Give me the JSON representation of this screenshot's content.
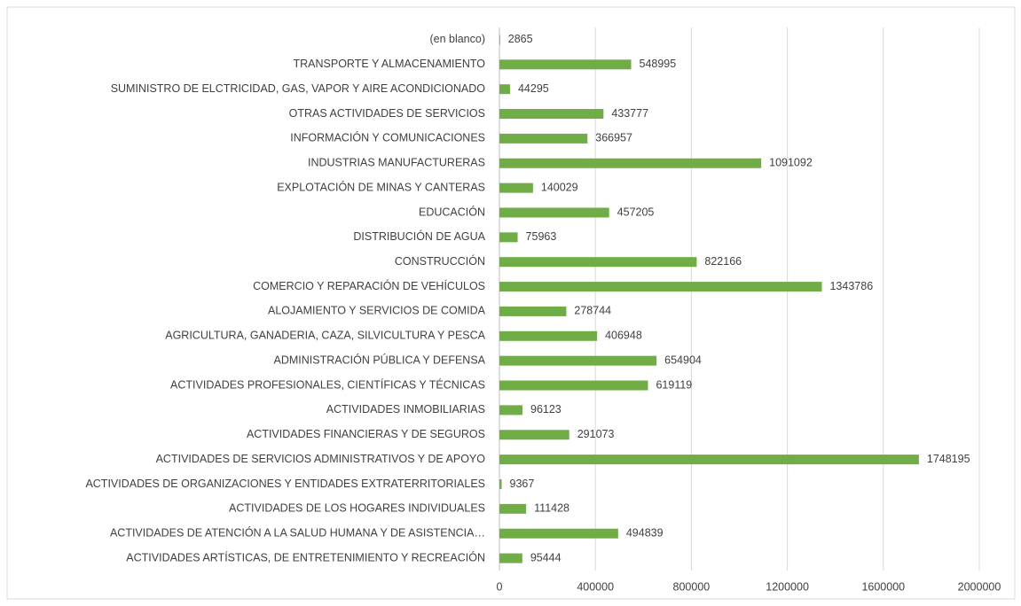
{
  "chart_data": {
    "type": "bar",
    "orientation": "horizontal",
    "categories": [
      "(en blanco)",
      "TRANSPORTE Y ALMACENAMIENTO",
      "SUMINISTRO DE ELCTRICIDAD, GAS, VAPOR Y AIRE ACONDICIONADO",
      "OTRAS ACTIVIDADES DE SERVICIOS",
      "INFORMACIÓN Y COMUNICACIONES",
      "INDUSTRIAS MANUFACTURERAS",
      "EXPLOTACIÓN DE MINAS Y CANTERAS",
      "EDUCACIÓN",
      "DISTRIBUCIÓN DE AGUA",
      "CONSTRUCCIÓN",
      "COMERCIO Y REPARACIÓN DE VEHÍCULOS",
      "ALOJAMIENTO Y SERVICIOS DE COMIDA",
      "AGRICULTURA, GANADERIA, CAZA, SILVICULTURA Y PESCA",
      "ADMINISTRACIÓN PÚBLICA Y DEFENSA",
      "ACTIVIDADES PROFESIONALES, CIENTÍFICAS Y TÉCNICAS",
      "ACTIVIDADES INMOBILIARIAS",
      "ACTIVIDADES FINANCIERAS Y DE SEGUROS",
      "ACTIVIDADES DE SERVICIOS ADMINISTRATIVOS Y DE APOYO",
      "ACTIVIDADES DE ORGANIZACIONES Y ENTIDADES EXTRATERRITORIALES",
      "ACTIVIDADES DE LOS HOGARES INDIVIDUALES",
      "ACTIVIDADES DE ATENCIÓN A LA SALUD HUMANA Y DE ASISTENCIA…",
      "ACTIVIDADES ARTÍSTICAS, DE ENTRETENIMIENTO Y RECREACIÓN"
    ],
    "values": [
      2865,
      548995,
      44295,
      433777,
      366957,
      1091092,
      140029,
      457205,
      75963,
      822166,
      1343786,
      278744,
      406948,
      654904,
      619119,
      96123,
      291073,
      1748195,
      9367,
      111428,
      494839,
      95444
    ],
    "color": "#70ad47",
    "xlim": [
      0,
      2000000
    ],
    "xticks": [
      0,
      400000,
      800000,
      1200000,
      1600000,
      2000000
    ],
    "grid": true
  }
}
